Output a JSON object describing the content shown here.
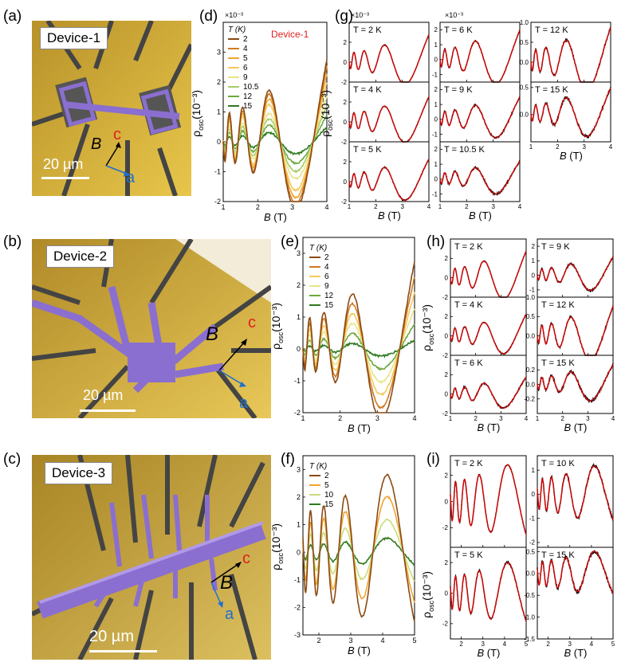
{
  "panel_letters": [
    "(a)",
    "(b)",
    "(c)",
    "(d)",
    "(e)",
    "(f)",
    "(g)",
    "(h)",
    "(i)"
  ],
  "micrographs": [
    {
      "device": "Device-1",
      "scale": "20 µm",
      "axis_B": "B",
      "axis_c": "c",
      "axis_a": "a"
    },
    {
      "device": "Device-2",
      "scale": "20 µm",
      "axis_B": "B",
      "axis_c": "c",
      "axis_a": "a"
    },
    {
      "device": "Device-3",
      "scale": "20 µm",
      "axis_B": "B",
      "axis_c": "c",
      "axis_a": "a"
    }
  ],
  "labels": {
    "rho": "ρ",
    "rho_sub": "osc",
    "rho_units": "(10⁻³)",
    "xlab_B": "B",
    "xlab_units": " (T)",
    "exp_1e3": "×10⁻³",
    "legend_title": "T (K)",
    "device1_note": "Device-1"
  },
  "colors": {
    "2": "#8b4a12",
    "4": "#d07a22",
    "5": "#f0a430",
    "6": "#f5c85a",
    "9": "#e8e48a",
    "10": "#c8dc7a",
    "10.5": "#a8cc6a",
    "12": "#6ea840",
    "15": "#2f7a1e",
    "fit": "#e00000",
    "data": "#000000"
  },
  "chart_data": [
    {
      "id": "d",
      "type": "line",
      "xlabel": "B (T)",
      "ylabel": "ρosc (10⁻³)",
      "xlim": [
        1,
        4
      ],
      "ylim": [
        -2,
        4
      ],
      "xticks": [
        1,
        2,
        3,
        4
      ],
      "yticks": [
        -2,
        -1,
        0,
        1,
        2,
        3
      ],
      "legend_title": "T (K)",
      "series": [
        {
          "name": "2",
          "amp": 1.0
        },
        {
          "name": "4",
          "amp": 0.92
        },
        {
          "name": "5",
          "amp": 0.83
        },
        {
          "name": "6",
          "amp": 0.72
        },
        {
          "name": "9",
          "amp": 0.55
        },
        {
          "name": "10.5",
          "amp": 0.44
        },
        {
          "name": "12",
          "amp": 0.32
        },
        {
          "name": "15",
          "amp": 0.18
        }
      ],
      "peaks_T2": {
        "x": [
          1.45,
          1.85,
          2.4,
          3.65
        ],
        "y": [
          0.5,
          0.9,
          1.45,
          3.5
        ]
      },
      "dips_T2": {
        "x": [
          1.6,
          2.1,
          2.7,
          3.05
        ],
        "y": [
          -0.3,
          -0.7,
          -1.15,
          -1.8
        ]
      }
    },
    {
      "id": "e",
      "type": "line",
      "xlabel": "B (T)",
      "ylabel": "ρosc (10⁻³)",
      "xlim": [
        1,
        4
      ],
      "ylim": [
        -2,
        3.5
      ],
      "xticks": [
        1,
        2,
        3,
        4
      ],
      "yticks": [
        -2,
        -1,
        0,
        1,
        2,
        3
      ],
      "legend_title": "T (K)",
      "series": [
        {
          "name": "2",
          "amp": 1.0
        },
        {
          "name": "4",
          "amp": 0.82
        },
        {
          "name": "6",
          "amp": 0.64
        },
        {
          "name": "9",
          "amp": 0.46
        },
        {
          "name": "12",
          "amp": 0.28
        },
        {
          "name": "15",
          "amp": 0.1
        }
      ],
      "peaks_T2": {
        "x": [
          1.45,
          1.85,
          2.4,
          3.65
        ],
        "y": [
          0.5,
          0.85,
          1.45,
          3.3
        ]
      },
      "dips_T2": {
        "x": [
          1.6,
          2.1,
          2.7,
          3.05
        ],
        "y": [
          -0.4,
          -0.8,
          -1.1,
          -1.75
        ]
      }
    },
    {
      "id": "f",
      "type": "line",
      "xlabel": "B (T)",
      "ylabel": "ρosc (10⁻³)",
      "xlim": [
        1.5,
        5
      ],
      "ylim": [
        -3,
        3.5
      ],
      "xticks": [
        2,
        3,
        4,
        5
      ],
      "yticks": [
        -3,
        -2,
        -1,
        0,
        1,
        2,
        3
      ],
      "legend_title": "T (K)",
      "series": [
        {
          "name": "2",
          "amp": 1.0
        },
        {
          "name": "5",
          "amp": 0.72
        },
        {
          "name": "10",
          "amp": 0.42
        },
        {
          "name": "15",
          "amp": 0.18
        }
      ],
      "peaks_T2": {
        "x": [
          1.8,
          2.4,
          3.65
        ],
        "y": [
          0.6,
          1.6,
          3.1
        ]
      },
      "dips_T2": {
        "x": [
          2.05,
          2.9,
          4.6
        ],
        "y": [
          -0.9,
          -1.8,
          -2.8
        ]
      }
    },
    {
      "id": "g",
      "type": "line",
      "xlabel": "B (T)",
      "ylabel": "ρosc (10⁻³)",
      "subplots": [
        {
          "T": "T = 2 K",
          "xlim": [
            1,
            4
          ],
          "ylim": [
            -2,
            4
          ],
          "amp": 1.0
        },
        {
          "T": "T = 4 K",
          "xlim": [
            1,
            4
          ],
          "ylim": [
            -2,
            4
          ],
          "amp": 0.92
        },
        {
          "T": "T = 5 K",
          "xlim": [
            1,
            4
          ],
          "ylim": [
            -2,
            4
          ],
          "amp": 0.83
        },
        {
          "T": "T = 6 K",
          "xlim": [
            1,
            4
          ],
          "ylim": [
            -1.5,
            2.5
          ],
          "amp": 0.72
        },
        {
          "T": "T = 9 K",
          "xlim": [
            1,
            4
          ],
          "ylim": [
            -1.5,
            2.5
          ],
          "amp": 0.55
        },
        {
          "T": "T = 10.5 K",
          "xlim": [
            1,
            4
          ],
          "ylim": [
            -1.5,
            2.5
          ],
          "amp": 0.44
        },
        {
          "T": "T = 12 K",
          "xlim": [
            1,
            4
          ],
          "ylim": [
            -0.5,
            1.0
          ],
          "amp": 0.32,
          "yticks": [
            0,
            0.5,
            1.0
          ],
          "yticklabels": [
            "0.0",
            "0.5",
            "1.0"
          ]
        },
        {
          "T": "T = 15 K",
          "xlim": [
            1,
            4
          ],
          "ylim": [
            -0.5,
            0.6
          ],
          "amp": 0.18,
          "yticks": [
            0,
            0.5
          ],
          "yticklabels": [
            "0.0",
            "0.5"
          ]
        }
      ]
    },
    {
      "id": "h",
      "type": "line",
      "xlabel": "B (T)",
      "ylabel": "ρosc (10⁻³)",
      "subplots": [
        {
          "T": "T = 2 K",
          "xlim": [
            1,
            4
          ],
          "ylim": [
            -2,
            4
          ],
          "amp": 1.0
        },
        {
          "T": "T = 4 K",
          "xlim": [
            1,
            4
          ],
          "ylim": [
            -2,
            4
          ],
          "amp": 0.82
        },
        {
          "T": "T = 6 K",
          "xlim": [
            1,
            4
          ],
          "ylim": [
            -2,
            4
          ],
          "amp": 0.64
        },
        {
          "T": "T = 9 K",
          "xlim": [
            1,
            4
          ],
          "ylim": [
            -1.5,
            2.5
          ],
          "amp": 0.46,
          "yticks": [
            -1,
            0,
            1,
            2
          ],
          "yticklabels": [
            "-1",
            "0",
            "1",
            "2"
          ]
        },
        {
          "T": "T = 12 K",
          "xlim": [
            1,
            4
          ],
          "ylim": [
            -0.5,
            1.0
          ],
          "amp": 0.28,
          "yticks": [
            0,
            0.5,
            1.0
          ],
          "yticklabels": [
            "0.0",
            "0.5",
            "1.0"
          ]
        },
        {
          "T": "T = 15 K",
          "xlim": [
            1,
            4
          ],
          "ylim": [
            -0.4,
            0.4
          ],
          "amp": 0.1,
          "yticks": [
            -0.2,
            0,
            0.2
          ],
          "yticklabels": [
            "-0.2",
            "0.0",
            "0.2"
          ]
        }
      ]
    },
    {
      "id": "i",
      "type": "line",
      "xlabel": "B (T)",
      "ylabel": "ρosc (10⁻³)",
      "subplots": [
        {
          "T": "T = 2 K",
          "xlim": [
            1.5,
            5
          ],
          "ylim": [
            -3.5,
            3.5
          ],
          "amp": 1.0,
          "yticks": [
            -2,
            0,
            2
          ],
          "yticklabels": [
            "-2",
            "0",
            "2"
          ]
        },
        {
          "T": "T = 5 K",
          "xlim": [
            1.5,
            5
          ],
          "ylim": [
            -3,
            3
          ],
          "amp": 0.72,
          "yticks": [
            -2,
            0,
            2
          ],
          "yticklabels": [
            "-2",
            "0",
            "2"
          ]
        },
        {
          "T": "T = 10 K",
          "xlim": [
            1.5,
            5
          ],
          "ylim": [
            -2.2,
            1.6
          ],
          "amp": 0.42,
          "yticks": [
            -2,
            -1,
            0,
            1
          ],
          "yticklabels": [
            "-2",
            "-1",
            "0",
            "1"
          ]
        },
        {
          "T": "T = 15 K",
          "xlim": [
            1.5,
            5
          ],
          "ylim": [
            -1.5,
            0.6
          ],
          "amp": 0.18,
          "yticks": [
            -1.5,
            -1.0,
            -0.5,
            0,
            0.5
          ],
          "yticklabels": [
            "-1.5",
            "-1.0",
            "-0.5",
            "0.0",
            "0.5"
          ]
        }
      ]
    }
  ]
}
